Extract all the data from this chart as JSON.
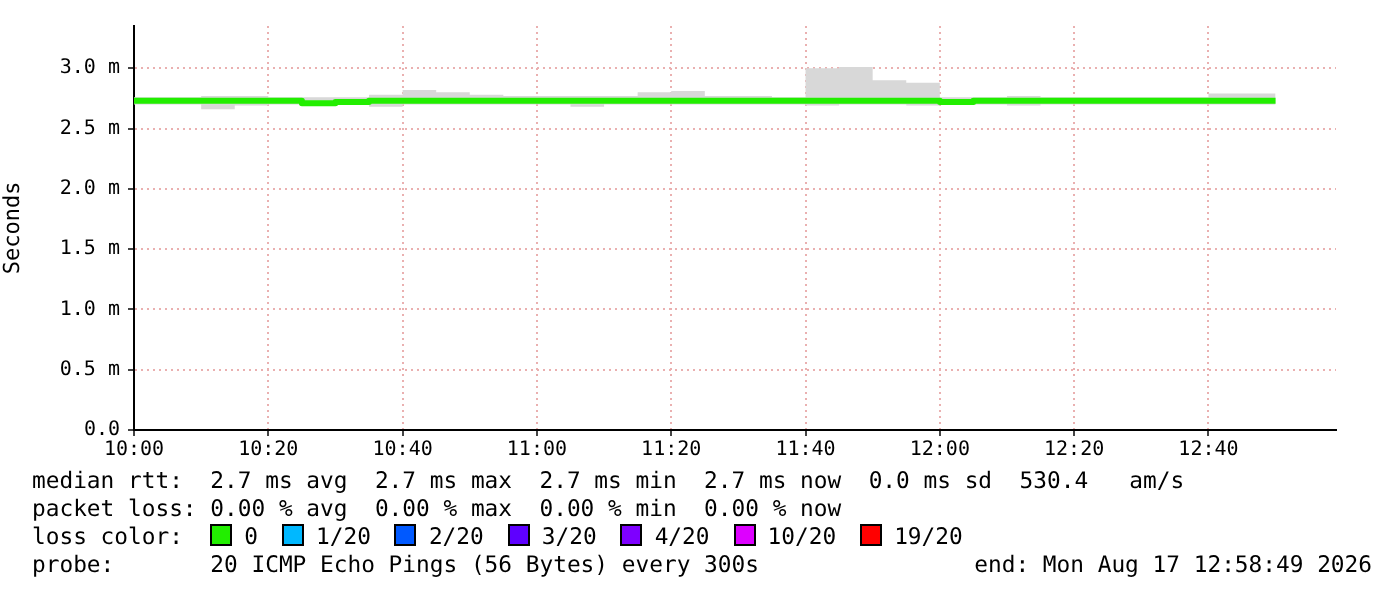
{
  "chart_data": {
    "type": "step",
    "ylabel": "Seconds",
    "marker": "none",
    "line_style": "solid",
    "grid": true,
    "legend": false,
    "xlim": [
      10,
      12.9833
    ],
    "xticks": [
      {
        "value": 10,
        "label": "10:00"
      },
      {
        "value": 10.3333,
        "label": "10:20"
      },
      {
        "value": 10.6667,
        "label": "10:40"
      },
      {
        "value": 11,
        "label": "11:00"
      },
      {
        "value": 11.3333,
        "label": "11:20"
      },
      {
        "value": 11.6667,
        "label": "11:40"
      },
      {
        "value": 12,
        "label": "12:00"
      },
      {
        "value": 12.3333,
        "label": "12:20"
      },
      {
        "value": 12.6667,
        "label": "12:40"
      }
    ],
    "ylim": [
      0,
      3.35
    ],
    "yticks": [
      {
        "value": 0,
        "label": "0.0"
      },
      {
        "value": 0.5,
        "label": "0.5 m"
      },
      {
        "value": 1,
        "label": "1.0 m"
      },
      {
        "value": 1.5,
        "label": "1.5 m"
      },
      {
        "value": 2,
        "label": "2.0 m"
      },
      {
        "value": 2.5,
        "label": "2.5 m"
      },
      {
        "value": 3,
        "label": "3.0 m"
      }
    ],
    "x": [
      10,
      10.0833,
      10.1667,
      10.25,
      10.3333,
      10.4167,
      10.5,
      10.5833,
      10.6667,
      10.75,
      10.8333,
      10.9167,
      11,
      11.0833,
      11.1667,
      11.25,
      11.3333,
      11.4167,
      11.5,
      11.5833,
      11.6667,
      11.75,
      11.8333,
      11.9167,
      12,
      12.0833,
      12.1667,
      12.25,
      12.3333,
      12.4167,
      12.5,
      12.5833,
      12.6667,
      12.75,
      12.8333
    ],
    "series": [
      {
        "color": "#22ee00",
        "values": [
          2.72,
          2.73,
          2.73,
          2.73,
          2.73,
          2.73,
          2.71,
          2.72,
          2.73,
          2.73,
          2.73,
          2.73,
          2.73,
          2.73,
          2.73,
          2.73,
          2.73,
          2.73,
          2.73,
          2.73,
          2.73,
          2.73,
          2.73,
          2.73,
          2.73,
          2.72,
          2.73,
          2.73,
          2.73,
          2.73,
          2.73,
          2.73,
          2.73,
          2.73,
          2.73
        ],
        "lower": [
          2.68,
          2.7,
          2.7,
          2.66,
          2.69,
          2.7,
          2.69,
          2.7,
          2.68,
          2.7,
          2.7,
          2.7,
          2.7,
          2.7,
          2.68,
          2.7,
          2.7,
          2.7,
          2.7,
          2.7,
          2.7,
          2.69,
          2.7,
          2.7,
          2.69,
          2.7,
          2.7,
          2.69,
          2.7,
          2.7,
          2.7,
          2.7,
          2.7,
          2.7,
          2.7
        ],
        "upper": [
          2.8,
          2.76,
          2.76,
          2.77,
          2.77,
          2.76,
          2.76,
          2.76,
          2.78,
          2.82,
          2.8,
          2.78,
          2.77,
          2.77,
          2.77,
          2.77,
          2.8,
          2.81,
          2.77,
          2.77,
          2.76,
          3,
          3.01,
          2.9,
          2.88,
          2.76,
          2.76,
          2.77,
          2.76,
          2.76,
          2.76,
          2.76,
          2.76,
          2.79,
          2.79
        ]
      }
    ],
    "annotations": [
      "median rtt:  2.7 ms avg  2.7 ms max  2.7 ms min  2.7 ms now  0.0 ms sd  530.4   am/s",
      "packet loss: 0.00 % avg  0.00 % max  0.00 % min  0.00 % now",
      "loss color:",
      "0",
      "1/20",
      "2/20",
      "3/20",
      "4/20",
      "10/20",
      "19/20",
      "probe:       20 ICMP Echo Pings (56 Bytes) every 300s",
      "end: Mon Aug 17 12:58:49 2026"
    ]
  }
}
